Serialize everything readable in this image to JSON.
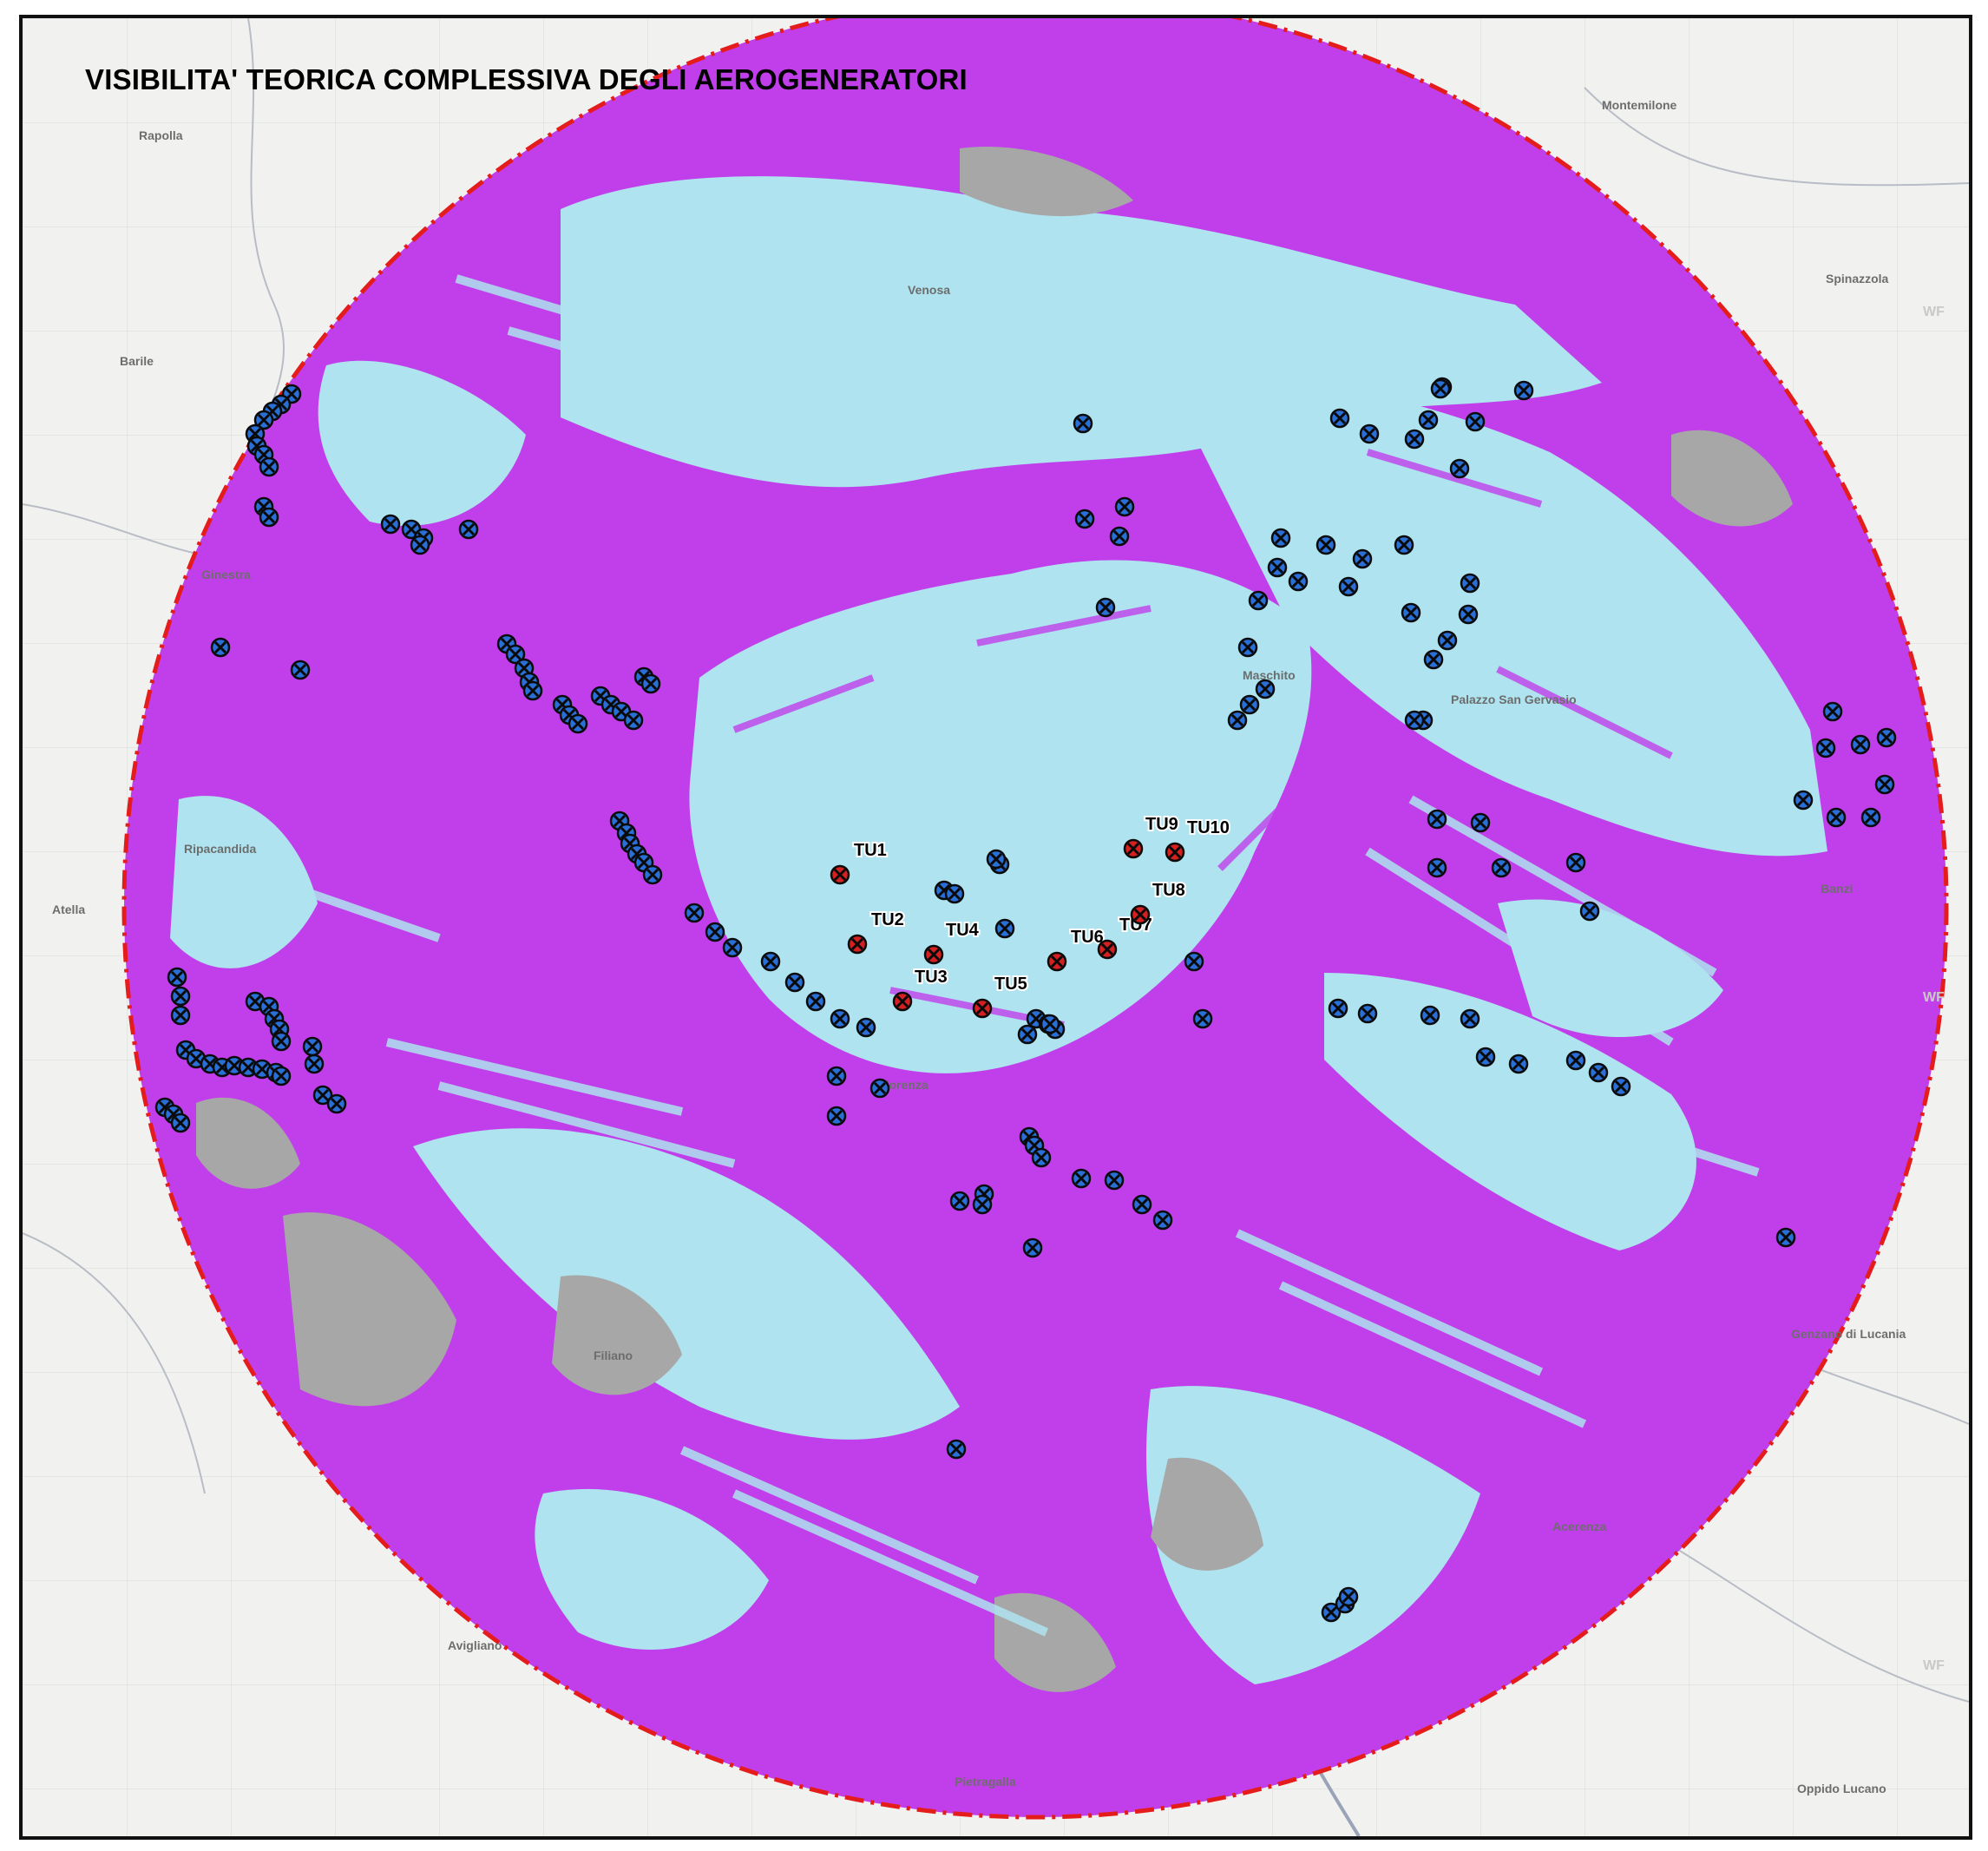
{
  "title": "VISIBILITA' TEORICA COMPLESSIVA DEGLI AEROGENERATORI",
  "colors": {
    "visible": "#c13fea",
    "not_visible": "#aee3ef",
    "terrain_gray": "#a7a7a7",
    "buffer_line": "#e51c1c",
    "project_turbine": "#d42020",
    "existing_turbine": "#2a6fd6",
    "base_map": "#f1f2f0"
  },
  "places": [
    {
      "id": "montemilone",
      "name": "Montemilone"
    },
    {
      "id": "rapolla",
      "name": "Rapolla"
    },
    {
      "id": "venosa",
      "name": "Venosa"
    },
    {
      "id": "spinazzola",
      "name": "Spinazzola"
    },
    {
      "id": "barile",
      "name": "Barile"
    },
    {
      "id": "ginestra",
      "name": "Ginestra"
    },
    {
      "id": "maschito",
      "name": "Maschito"
    },
    {
      "id": "palazzo",
      "name": "Palazzo San Gervasio"
    },
    {
      "id": "ripacandida",
      "name": "Ripacandida"
    },
    {
      "id": "atella",
      "name": "Atella"
    },
    {
      "id": "banzi",
      "name": "Banzi"
    },
    {
      "id": "forenza",
      "name": "Forenza"
    },
    {
      "id": "genzano",
      "name": "Genzano di Lucania"
    },
    {
      "id": "filiano",
      "name": "Filiano"
    },
    {
      "id": "acerenza",
      "name": "Acerenza"
    },
    {
      "id": "avigliano",
      "name": "Avigliano"
    },
    {
      "id": "pietragalla",
      "name": "Pietragalla"
    },
    {
      "id": "oppido",
      "name": "Oppido Lucano"
    }
  ],
  "project_turbines": [
    {
      "id": "TU1",
      "label": "TU1"
    },
    {
      "id": "TU2",
      "label": "TU2"
    },
    {
      "id": "TU3",
      "label": "TU3"
    },
    {
      "id": "TU4",
      "label": "TU4"
    },
    {
      "id": "TU5",
      "label": "TU5"
    },
    {
      "id": "TU6",
      "label": "TU6"
    },
    {
      "id": "TU7",
      "label": "TU7"
    },
    {
      "id": "TU8",
      "label": "TU8"
    },
    {
      "id": "TU9",
      "label": "TU9"
    },
    {
      "id": "TU10",
      "label": "TU10"
    }
  ],
  "grid_marks": [
    "WF",
    "WF",
    "WF"
  ]
}
